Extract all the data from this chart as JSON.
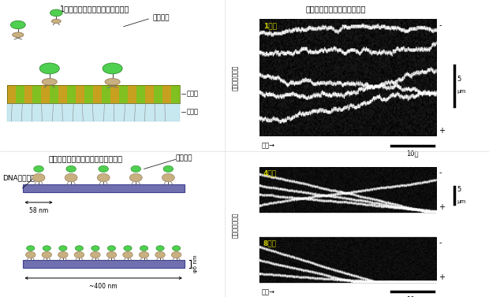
{
  "title_top_left": "1分子のダイニンの運動の模式図",
  "title_top_right": "運動の様子を表すキモグラフ",
  "title_bottom_left": "複数分子のダイニン複合体の再構成",
  "label_dynein_top": "ダイニン",
  "label_microtubule": "微小管",
  "label_glass": "ガラス",
  "label_dna_origami": "DNAオリガミ",
  "label_dynein_bottom": "ダイニン",
  "label_58nm": "58 nm",
  "label_400nm": "~400 nm",
  "label_6nm": "φ6 nm",
  "label_1mol": "1分子",
  "label_4mol": "4分子",
  "label_8mol": "8分子",
  "label_time_arrow": "時間→",
  "label_10sec": "10秒",
  "label_5um": "5 μm",
  "label_microtubule_pos": "微小管上の変位",
  "bg_color": "#ffffff",
  "yellow": "#cccc00",
  "microtubule_colors": [
    "#c8a020",
    "#80c020"
  ],
  "glass_color": "#c8e8f0",
  "dna_rod_color": "#7070b0",
  "dna_rod_edge": "#404090"
}
